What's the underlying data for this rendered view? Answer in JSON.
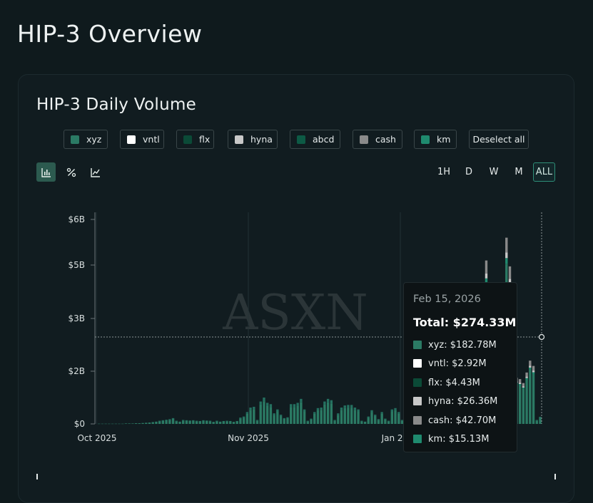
{
  "page": {
    "title": "HIP-3 Overview"
  },
  "card": {
    "title": "HIP-3 Daily Volume"
  },
  "legend": {
    "items": [
      {
        "label": "xyz",
        "color": "#2b7a64"
      },
      {
        "label": "vntl",
        "color": "#ffffff"
      },
      {
        "label": "flx",
        "color": "#0b4a37"
      },
      {
        "label": "hyna",
        "color": "#c8c8c8"
      },
      {
        "label": "abcd",
        "color": "#0d5a45"
      },
      {
        "label": "cash",
        "color": "#8a8a8a"
      },
      {
        "label": "km",
        "color": "#1f8a6e"
      }
    ],
    "deselect_all": "Deselect all"
  },
  "toolbar": {
    "modes": [
      "bar-chart-icon",
      "percent-icon",
      "line-chart-icon"
    ],
    "active_mode": "bar-chart-icon",
    "timeframes": [
      "1H",
      "D",
      "W",
      "M",
      "ALL"
    ],
    "active_timeframe": "ALL"
  },
  "watermark": "ASXN",
  "chart_data": {
    "type": "bar",
    "stacked": true,
    "title": "HIP-3 Daily Volume",
    "xlabel": "",
    "ylabel": "",
    "y_ticks": [
      "$0",
      "$2B",
      "$3B",
      "$5B",
      "$6B"
    ],
    "x_ticks": [
      "Oct 2025",
      "Nov 2025",
      "Jan 2026"
    ],
    "grid": "vertical",
    "start_date": "2025-10-01",
    "series": [
      {
        "name": "xyz"
      },
      {
        "name": "vntl"
      },
      {
        "name": "flx"
      },
      {
        "name": "hyna"
      },
      {
        "name": "abcd"
      },
      {
        "name": "cash"
      },
      {
        "name": "km"
      }
    ],
    "daily_totals_billions": [
      0.01,
      0.01,
      0.01,
      0.01,
      0.01,
      0.01,
      0.01,
      0.01,
      0.02,
      0.02,
      0.02,
      0.03,
      0.03,
      0.04,
      0.05,
      0.06,
      0.08,
      0.1,
      0.12,
      0.14,
      0.16,
      0.18,
      0.22,
      0.12,
      0.1,
      0.15,
      0.14,
      0.13,
      0.14,
      0.12,
      0.11,
      0.14,
      0.13,
      0.12,
      0.09,
      0.12,
      0.1,
      0.11,
      0.12,
      0.11,
      0.09,
      0.11,
      0.24,
      0.28,
      0.45,
      0.62,
      0.65,
      0.15,
      0.85,
      1.0,
      0.8,
      0.75,
      0.4,
      0.55,
      0.35,
      0.22,
      0.25,
      0.75,
      0.75,
      0.8,
      0.95,
      0.55,
      0.12,
      0.2,
      0.45,
      0.6,
      0.62,
      0.85,
      0.95,
      0.9,
      0.15,
      0.4,
      0.62,
      0.7,
      0.72,
      0.72,
      0.62,
      0.55,
      0.12,
      0.1,
      0.28,
      0.52,
      0.35,
      0.18,
      0.45,
      0.2,
      0.12,
      0.55,
      0.6,
      0.45,
      0.15,
      0.6,
      0.2,
      0.15,
      0.65,
      0.62,
      0.6,
      0.55,
      0.6,
      0.55,
      0.55,
      0.78,
      0.75,
      0.78,
      0.72,
      0.7,
      1.0,
      1.25,
      1.45,
      1.5,
      1.55,
      1.6,
      1.7,
      1.72,
      1.75,
      5.1,
      3.2,
      2.8,
      1.9,
      1.85,
      2.0,
      5.6,
      4.95,
      2.1,
      1.75,
      1.7,
      1.55,
      1.95,
      2.2,
      2.1,
      0.15,
      0.27
    ],
    "tooltip": {
      "date": "Feb 15, 2026",
      "total": "Total: $274.33M",
      "rows": [
        {
          "name": "xyz",
          "value": "xyz: $182.78M",
          "color": "#2b7a64"
        },
        {
          "name": "vntl",
          "value": "vntl: $2.92M",
          "color": "#ffffff"
        },
        {
          "name": "flx",
          "value": "flx: $4.43M",
          "color": "#0b4a37"
        },
        {
          "name": "hyna",
          "value": "hyna: $26.36M",
          "color": "#c8c8c8"
        },
        {
          "name": "cash",
          "value": "cash: $42.70M",
          "color": "#8a8a8a"
        },
        {
          "name": "km",
          "value": "km: $15.13M",
          "color": "#1f8a6e"
        }
      ]
    }
  }
}
